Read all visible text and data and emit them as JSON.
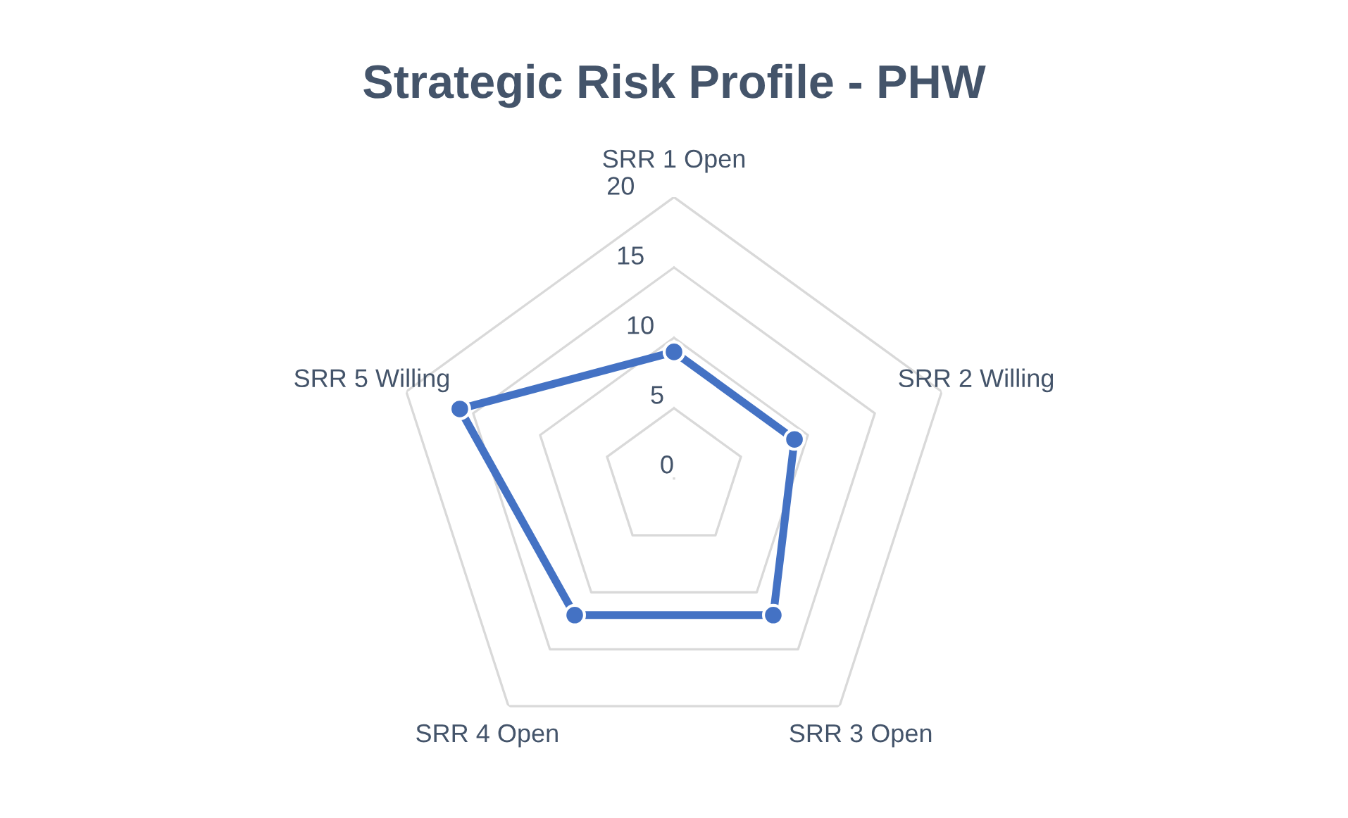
{
  "chart_data": {
    "type": "radar",
    "title": "Strategic Risk Profile - PHW",
    "categories": [
      "SRR 1 Open",
      "SRR 2 Willing",
      "SRR 3 Open",
      "SRR 4 Open",
      "SRR 5 Willing"
    ],
    "series": [
      {
        "color": "#4472c4",
        "values": [
          9,
          9,
          12,
          12,
          16
        ]
      }
    ],
    "ylim": [
      0,
      20
    ],
    "yticks": [
      0,
      5,
      10,
      15,
      20
    ],
    "grid": true,
    "marker": "circle",
    "line_style": "solid"
  }
}
